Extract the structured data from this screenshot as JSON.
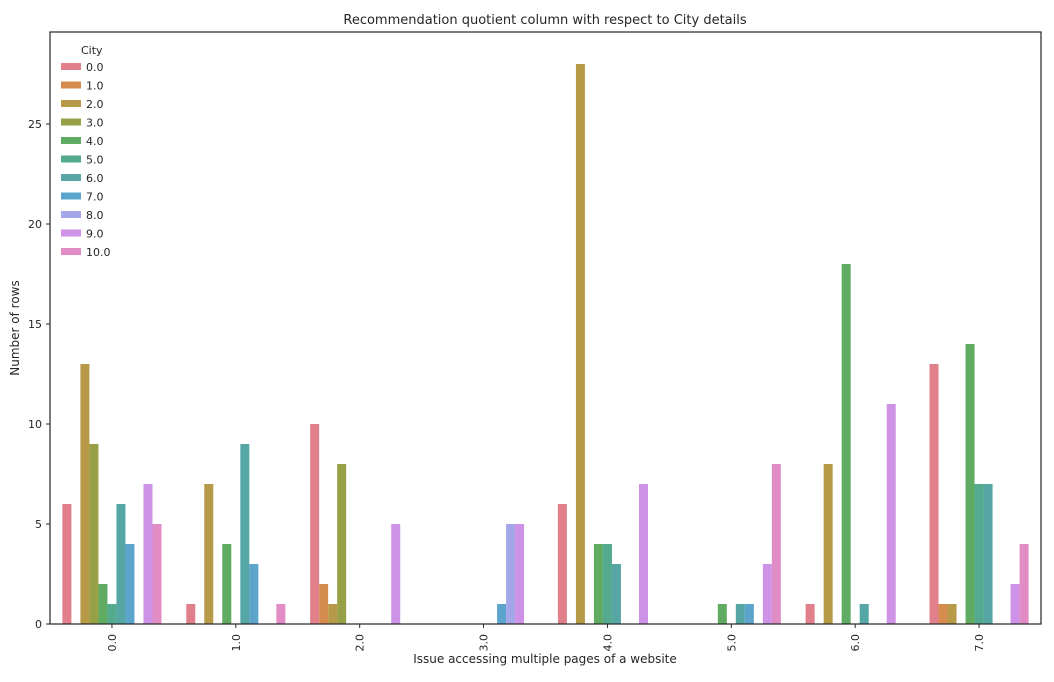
{
  "chart_data": {
    "type": "bar",
    "title": "Recommendation quotient column with respect to City details",
    "xlabel": "Issue accessing multiple pages of a website",
    "ylabel": "Number of rows",
    "ylim": [
      0,
      29.6
    ],
    "yticks": [
      "0",
      "5",
      "10",
      "15",
      "20",
      "25"
    ],
    "grid": false,
    "legend_placement": "top-left",
    "legend_title": "City",
    "categories": [
      "0.0",
      "1.0",
      "2.0",
      "3.0",
      "4.0",
      "5.0",
      "6.0",
      "7.0"
    ],
    "series": [
      {
        "name": "0.0",
        "color": "#e1808b",
        "values": [
          6,
          1,
          10,
          0,
          6,
          0,
          1,
          13
        ]
      },
      {
        "name": "1.0",
        "color": "#d68c4f",
        "values": [
          0,
          0,
          2,
          0,
          0,
          0,
          0,
          1
        ]
      },
      {
        "name": "2.0",
        "color": "#b69a48",
        "values": [
          13,
          7,
          1,
          0,
          28,
          0,
          8,
          1
        ]
      },
      {
        "name": "3.0",
        "color": "#98a046",
        "values": [
          9,
          0,
          8,
          0,
          0,
          0,
          0,
          0
        ]
      },
      {
        "name": "4.0",
        "color": "#5fab61",
        "values": [
          2,
          4,
          0,
          0,
          4,
          1,
          18,
          14
        ]
      },
      {
        "name": "5.0",
        "color": "#53aa8f",
        "values": [
          1,
          0,
          0,
          0,
          4,
          0,
          0,
          7
        ]
      },
      {
        "name": "6.0",
        "color": "#56a6a5",
        "values": [
          6,
          9,
          0,
          0,
          3,
          1,
          1,
          7
        ]
      },
      {
        "name": "7.0",
        "color": "#5ba4cc",
        "values": [
          4,
          3,
          0,
          1,
          0,
          1,
          0,
          0
        ]
      },
      {
        "name": "8.0",
        "color": "#a3a6e8",
        "values": [
          0,
          0,
          0,
          5,
          0,
          0,
          0,
          0
        ]
      },
      {
        "name": "9.0",
        "color": "#ce92e6",
        "values": [
          7,
          0,
          5,
          5,
          7,
          3,
          11,
          2
        ]
      },
      {
        "name": "10.0",
        "color": "#e18cc5",
        "values": [
          5,
          1,
          0,
          0,
          0,
          8,
          0,
          4
        ]
      }
    ]
  }
}
